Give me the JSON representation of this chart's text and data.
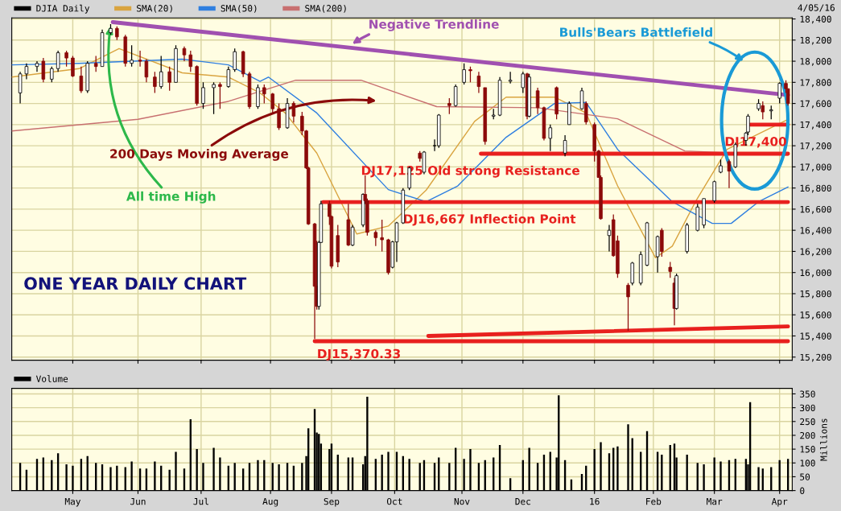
{
  "chart_data": [
    {
      "type": "candlestick",
      "legend": "top left",
      "grid": true,
      "tick_labels": "y",
      "xlim": [
        "2015-04-02",
        "2016-04-07"
      ],
      "xticks": [
        {
          "value": "2015-05-01",
          "label": null
        },
        {
          "value": "2015-06-01",
          "label": null
        },
        {
          "value": "2015-07-01",
          "label": null
        },
        {
          "value": "2015-08-03",
          "label": null
        },
        {
          "value": "2015-09-01",
          "label": null
        },
        {
          "value": "2015-10-01",
          "label": null
        },
        {
          "value": "2015-11-02",
          "label": null
        },
        {
          "value": "2015-12-01",
          "label": null
        },
        {
          "value": "2016-01-04",
          "label": null
        },
        {
          "value": "2016-02-01",
          "label": null
        },
        {
          "value": "2016-03-01",
          "label": null
        },
        {
          "value": "2016-04-01",
          "label": null
        }
      ],
      "ylim": [
        15170,
        18410
      ],
      "yticks": [
        {
          "value": 15200,
          "label": "15,200"
        },
        {
          "value": 15400,
          "label": "15,400"
        },
        {
          "value": 15600,
          "label": "15,600"
        },
        {
          "value": 15800,
          "label": "15,800"
        },
        {
          "value": 16000,
          "label": "16,000"
        },
        {
          "value": 16200,
          "label": "16,200"
        },
        {
          "value": 16400,
          "label": "16,400"
        },
        {
          "value": 16600,
          "label": "16,600"
        },
        {
          "value": 16800,
          "label": "16,800"
        },
        {
          "value": 17000,
          "label": "17,000"
        },
        {
          "value": 17200,
          "label": "17,200"
        },
        {
          "value": 17400,
          "label": "17,400"
        },
        {
          "value": 17600,
          "label": "17,600"
        },
        {
          "value": 17800,
          "label": "17,800"
        },
        {
          "value": 18000,
          "label": "18,000"
        },
        {
          "value": 18200,
          "label": "18,200"
        },
        {
          "value": 18400,
          "label": "18,400"
        }
      ],
      "series": [
        {
          "name": "DJIA Daily",
          "color": "#000000",
          "colors": [
            "#ffffff",
            "#ffffff",
            "#ffffff",
            "#8b0a0a",
            "#ffffff",
            "#ffffff",
            "#8b0a0a",
            "#8b0a0a",
            "#8b0a0a",
            "#ffffff",
            "#8b0a0a",
            "#ffffff",
            "#ffffff",
            "#8b0a0a",
            "#8b0a0a",
            "#ffffff",
            "#8b0a0a",
            "#8b0a0a",
            "#8b0a0a",
            "#ffffff",
            "#8b0a0a",
            "#ffffff",
            "#8b0a0a",
            "#8b0a0a",
            "#8b0a0a",
            "#ffffff",
            "#ffffff",
            "#8b0a0a",
            "#ffffff",
            "#ffffff",
            "#8b0a0a",
            "#8b0a0a",
            "#ffffff",
            "#8b0a0a",
            "#8b0a0a",
            "#8b0a0a",
            "#ffffff",
            "#8b0a0a",
            "#8b0a0a",
            "#8b0a0a",
            "#8b0a0a",
            "#8b0a0a",
            "#8b0a0a",
            "#ffffff",
            "#ffffff",
            "#8b0a0a",
            "#8b0a0a",
            "#8b0a0a",
            "#8b0a0a",
            "#ffffff",
            "#ffffff",
            "#8b0a0a",
            "#8b0a0a",
            "#8b0a0a",
            "#8b0a0a",
            "#8b0a0a",
            "#ffffff",
            "#ffffff",
            "#ffffff",
            "#ffffff",
            "#8b0a0a",
            "#ffffff",
            "#ffffff",
            "#ffffff",
            "#8b0a0a",
            "#ffffff",
            "#ffffff",
            "#8b0a0a",
            "#8b0a0a",
            "#8b0a0a",
            "#ffffff",
            "#ffffff",
            "#ffffff",
            "#ffffff",
            "#8b0a0a",
            "#ffffff",
            "#8b0a0a",
            "#8b0a0a",
            "#ffffff",
            "#8b0a0a",
            "#ffffff",
            "#ffffff",
            "#ffffff",
            "#8b0a0a",
            "#8b0a0a",
            "#8b0a0a",
            "#8b0a0a",
            "#ffffff",
            "#8b0a0a",
            "#8b0a0a",
            "#8b0a0a",
            "#ffffff",
            "#ffffff",
            "#ffffff",
            "#ffffff",
            "#8b0a0a",
            "#8b0a0a",
            "#8b0a0a",
            "#ffffff",
            "#ffffff",
            "#ffffff",
            "#ffffff",
            "#ffffff",
            "#ffffff",
            "#8b0a0a",
            "#ffffff",
            "#ffffff",
            "#ffffff",
            "#ffffff",
            "#8b0a0a",
            "#ffffff",
            "#ffffff",
            "#8b0a0a",
            "#8b0a0a"
          ],
          "x": [
            "2015-04-06",
            "2015-04-09",
            "2015-04-14",
            "2015-04-17",
            "2015-04-21",
            "2015-04-24",
            "2015-04-28",
            "2015-05-01",
            "2015-05-05",
            "2015-05-08",
            "2015-05-12",
            "2015-05-15",
            "2015-05-19",
            "2015-05-22",
            "2015-05-26",
            "2015-05-29",
            "2015-06-02",
            "2015-06-05",
            "2015-06-09",
            "2015-06-12",
            "2015-06-16",
            "2015-06-19",
            "2015-06-23",
            "2015-06-26",
            "2015-06-29",
            "2015-07-02",
            "2015-07-07",
            "2015-07-10",
            "2015-07-14",
            "2015-07-17",
            "2015-07-21",
            "2015-07-24",
            "2015-07-28",
            "2015-07-31",
            "2015-08-04",
            "2015-08-07",
            "2015-08-11",
            "2015-08-14",
            "2015-08-18",
            "2015-08-20",
            "2015-08-21",
            "2015-08-24",
            "2015-08-25",
            "2015-08-26",
            "2015-08-27",
            "2015-08-31",
            "2015-09-01",
            "2015-09-04",
            "2015-09-09",
            "2015-09-11",
            "2015-09-16",
            "2015-09-17",
            "2015-09-18",
            "2015-09-22",
            "2015-09-25",
            "2015-09-28",
            "2015-09-30",
            "2015-10-02",
            "2015-10-05",
            "2015-10-08",
            "2015-10-13",
            "2015-10-15",
            "2015-10-20",
            "2015-10-22",
            "2015-10-27",
            "2015-10-30",
            "2015-11-03",
            "2015-11-06",
            "2015-11-10",
            "2015-11-13",
            "2015-11-17",
            "2015-11-20",
            "2015-11-25",
            "2015-12-01",
            "2015-12-03",
            "2015-12-04",
            "2015-12-08",
            "2015-12-11",
            "2015-12-14",
            "2015-12-17",
            "2015-12-21",
            "2015-12-23",
            "2015-12-29",
            "2015-12-31",
            "2016-01-04",
            "2016-01-06",
            "2016-01-07",
            "2016-01-11",
            "2016-01-13",
            "2016-01-15",
            "2016-01-20",
            "2016-01-22",
            "2016-01-26",
            "2016-01-29",
            "2016-02-03",
            "2016-02-05",
            "2016-02-09",
            "2016-02-11",
            "2016-02-12",
            "2016-02-17",
            "2016-02-22",
            "2016-02-25",
            "2016-03-01",
            "2016-03-04",
            "2016-03-08",
            "2016-03-11",
            "2016-03-16",
            "2016-03-17",
            "2016-03-22",
            "2016-03-24",
            "2016-03-28",
            "2016-04-01",
            "2016-04-04",
            "2016-04-05"
          ],
          "ohlc": [
            [
              17700,
              17900,
              17600,
              17880
            ],
            [
              17880,
              17980,
              17830,
              17950
            ],
            [
              17950,
              18000,
              17900,
              17980
            ],
            [
              18000,
              18030,
              17800,
              17830
            ],
            [
              17830,
              17950,
              17800,
              17930
            ],
            [
              17930,
              18100,
              17900,
              18080
            ],
            [
              18080,
              18100,
              17950,
              18030
            ],
            [
              18030,
              18050,
              17850,
              17860
            ],
            [
              17860,
              17950,
              17700,
              17720
            ],
            [
              17720,
              18000,
              17700,
              17980
            ],
            [
              17980,
              18050,
              17900,
              17950
            ],
            [
              17950,
              18300,
              17950,
              18270
            ],
            [
              18270,
              18351,
              18250,
              18310
            ],
            [
              18310,
              18330,
              18200,
              18230
            ],
            [
              18230,
              18250,
              17950,
              17980
            ],
            [
              17980,
              18150,
              17950,
              18010
            ],
            [
              18010,
              18100,
              17950,
              18000
            ],
            [
              18000,
              18020,
              17800,
              17850
            ],
            [
              17850,
              17900,
              17700,
              17760
            ],
            [
              17760,
              18050,
              17740,
              17900
            ],
            [
              17900,
              17950,
              17720,
              17800
            ],
            [
              17800,
              18150,
              17800,
              18120
            ],
            [
              18120,
              18140,
              18000,
              18060
            ],
            [
              18060,
              18100,
              17900,
              17950
            ],
            [
              17950,
              17960,
              17580,
              17600
            ],
            [
              17600,
              17800,
              17550,
              17750
            ],
            [
              17750,
              17800,
              17500,
              17780
            ],
            [
              17780,
              17800,
              17550,
              17760
            ],
            [
              17760,
              17950,
              17750,
              17920
            ],
            [
              17920,
              18120,
              17900,
              18090
            ],
            [
              18090,
              18100,
              17850,
              17880
            ],
            [
              17880,
              17900,
              17550,
              17570
            ],
            [
              17570,
              17780,
              17550,
              17750
            ],
            [
              17750,
              17780,
              17600,
              17690
            ],
            [
              17690,
              17700,
              17500,
              17550
            ],
            [
              17550,
              17600,
              17350,
              17370
            ],
            [
              17370,
              17650,
              17360,
              17600
            ],
            [
              17600,
              17620,
              17420,
              17480
            ],
            [
              17480,
              17520,
              17300,
              17340
            ],
            [
              17340,
              17350,
              16980,
              16990
            ],
            [
              16990,
              17000,
              16450,
              16460
            ],
            [
              16460,
              16470,
              15370.33,
              15870
            ],
            [
              15870,
              16300,
              15650,
              15680
            ],
            [
              15680,
              16300,
              15650,
              16285
            ],
            [
              16285,
              16680,
              16280,
              16650
            ],
            [
              16650,
              16680,
              16450,
              16530
            ],
            [
              16530,
              16540,
              16040,
              16060
            ],
            [
              16350,
              16450,
              16050,
              16100
            ],
            [
              16500,
              16650,
              16250,
              16260
            ],
            [
              16260,
              16450,
              16250,
              16430
            ],
            [
              16450,
              16750,
              16430,
              16740
            ],
            [
              16740,
              16920,
              16650,
              16680
            ],
            [
              16680,
              16700,
              16350,
              16380
            ],
            [
              16380,
              16400,
              16250,
              16330
            ],
            [
              16330,
              16500,
              16200,
              16310
            ],
            [
              16310,
              16320,
              15980,
              16000
            ],
            [
              16050,
              16300,
              16040,
              16290
            ],
            [
              16290,
              16480,
              16100,
              16470
            ],
            [
              16470,
              16800,
              16460,
              16780
            ],
            [
              16800,
              17000,
              16780,
              16990
            ],
            [
              17130,
              17150,
              17050,
              17080
            ],
            [
              16950,
              17150,
              16930,
              17140
            ],
            [
              17200,
              17260,
              17150,
              17200
            ],
            [
              17200,
              17500,
              17180,
              17490
            ],
            [
              17600,
              17650,
              17500,
              17580
            ],
            [
              17580,
              17780,
              17570,
              17760
            ],
            [
              17800,
              17980,
              17780,
              17920
            ],
            [
              17920,
              17950,
              17800,
              17910
            ],
            [
              17860,
              17900,
              17700,
              17760
            ],
            [
              17750,
              17750,
              17210,
              17240
            ],
            [
              17480,
              17550,
              17450,
              17490
            ],
            [
              17490,
              17850,
              17480,
              17820
            ],
            [
              17810,
              17900,
              17790,
              17820
            ],
            [
              17750,
              17900,
              17700,
              17880
            ],
            [
              17880,
              17890,
              17450,
              17480
            ],
            [
              17480,
              17880,
              17470,
              17850
            ],
            [
              17720,
              17750,
              17500,
              17560
            ],
            [
              17560,
              17570,
              17250,
              17270
            ],
            [
              17270,
              17400,
              17150,
              17370
            ],
            [
              17750,
              17760,
              17450,
              17500
            ],
            [
              17130,
              17300,
              17100,
              17250
            ],
            [
              17400,
              17620,
              17400,
              17600
            ],
            [
              17550,
              17750,
              17540,
              17720
            ],
            [
              17600,
              17620,
              17400,
              17425
            ],
            [
              17400,
              17420,
              17050,
              17150
            ],
            [
              17150,
              17160,
              16900,
              16900
            ],
            [
              16900,
              16920,
              16500,
              16510
            ],
            [
              16350,
              16450,
              16200,
              16400
            ],
            [
              16500,
              16550,
              16150,
              16160
            ],
            [
              16300,
              16350,
              15950,
              15990
            ],
            [
              15880,
              15900,
              15450,
              15770
            ],
            [
              15900,
              16100,
              15880,
              16090
            ],
            [
              15900,
              16200,
              15880,
              16170
            ],
            [
              16070,
              16480,
              16060,
              16470
            ],
            [
              16150,
              16350,
              16000,
              16340
            ],
            [
              16400,
              16420,
              16150,
              16200
            ],
            [
              16050,
              16100,
              15950,
              16010
            ],
            [
              15900,
              15950,
              15500,
              15660
            ],
            [
              15660,
              15990,
              15650,
              15970
            ],
            [
              16200,
              16470,
              16180,
              16450
            ],
            [
              16400,
              16650,
              16390,
              16620
            ],
            [
              16450,
              16700,
              16420,
              16700
            ],
            [
              16680,
              16870,
              16660,
              16860
            ],
            [
              16950,
              17070,
              16940,
              17010
            ],
            [
              17050,
              17070,
              16800,
              16960
            ],
            [
              17000,
              17230,
              16990,
              17210
            ],
            [
              17250,
              17330,
              17200,
              17320
            ],
            [
              17330,
              17500,
              17300,
              17480
            ],
            [
              17550,
              17640,
              17530,
              17600
            ],
            [
              17580,
              17620,
              17450,
              17520
            ],
            [
              17530,
              17580,
              17450,
              17540
            ],
            [
              17650,
              17800,
              17600,
              17790
            ],
            [
              17790,
              17820,
              17700,
              17740
            ],
            [
              17740,
              17740,
              17580,
              17600
            ]
          ],
          "type": "candlestick"
        },
        {
          "name": "SMA(20)",
          "type": "line",
          "color": "#d9a440",
          "x": [
            "2015-04-02",
            "2015-05-04",
            "2015-05-23",
            "2015-06-22",
            "2015-07-14",
            "2015-07-29",
            "2015-08-10",
            "2015-08-25",
            "2015-09-13",
            "2015-09-28",
            "2015-10-16",
            "2015-11-08",
            "2015-11-23",
            "2015-12-16",
            "2015-12-31",
            "2016-01-15",
            "2016-02-02",
            "2016-02-10",
            "2016-02-21",
            "2016-03-07",
            "2016-04-05"
          ],
          "values": [
            17850,
            17930,
            18120,
            17890,
            17850,
            17700,
            17510,
            17130,
            16365,
            16440,
            16780,
            17430,
            17660,
            17660,
            17510,
            16820,
            16140,
            16250,
            16670,
            17165,
            17450
          ]
        },
        {
          "name": "SMA(50)",
          "type": "line",
          "color": "#2f7fe0",
          "x": [
            "2015-04-02",
            "2015-05-04",
            "2015-06-22",
            "2015-07-14",
            "2015-07-29",
            "2015-08-02",
            "2015-08-25",
            "2015-09-28",
            "2015-10-16",
            "2015-10-31",
            "2015-11-23",
            "2015-12-16",
            "2015-12-31",
            "2016-01-15",
            "2016-02-10",
            "2016-02-29",
            "2016-03-09",
            "2016-03-22",
            "2016-04-05"
          ],
          "values": [
            17965,
            17980,
            18020,
            17965,
            17810,
            17850,
            17510,
            16785,
            16670,
            16820,
            17280,
            17600,
            17610,
            17165,
            16670,
            16465,
            16465,
            16670,
            16810
          ]
        },
        {
          "name": "SMA(200)",
          "type": "line",
          "color": "#c87070",
          "x": [
            "2015-04-02",
            "2015-06-01",
            "2015-07-14",
            "2015-08-15",
            "2015-09-15",
            "2015-10-21",
            "2015-12-08",
            "2016-01-15",
            "2016-02-16",
            "2016-04-05"
          ],
          "values": [
            17340,
            17450,
            17620,
            17820,
            17820,
            17570,
            17560,
            17455,
            17150,
            17110
          ]
        },
        {
          "type": "line",
          "color": "#a050b0",
          "x": [
            "2015-05-20",
            "2016-04-05"
          ],
          "values": [
            18370,
            17680
          ]
        },
        {
          "type": "line",
          "color": "#e8201e",
          "x": [
            "2015-11-11",
            "2016-04-05"
          ],
          "values": [
            17125,
            17125
          ]
        },
        {
          "type": "line",
          "color": "#e8201e",
          "x": [
            "2015-08-28",
            "2016-04-05"
          ],
          "values": [
            16667,
            16667
          ]
        },
        {
          "type": "line",
          "color": "#e8201e",
          "x": [
            "2016-03-18",
            "2016-04-05"
          ],
          "values": [
            17400,
            17400
          ]
        },
        {
          "type": "line",
          "color": "#e8201e",
          "x": [
            "2015-08-24",
            "2016-04-05"
          ],
          "values": [
            15350,
            15350
          ]
        },
        {
          "type": "line",
          "color": "#e8201e",
          "x": [
            "2015-10-17",
            "2016-04-05"
          ],
          "values": [
            15400,
            15490
          ]
        }
      ],
      "annotations": [
        {
          "text": "All time High",
          "x": "2015-05-19",
          "y": 18351
        },
        {
          "text": "Negative Trendline",
          "x": "2015-09-10",
          "y": 18150
        },
        "200 Days Moving Average",
        "Bulls'Bears Battlefield",
        {
          "text": "DJ17,125 Old strong Resistance",
          "x": "2015-11-22",
          "y": 17125
        },
        {
          "text": "DJ16,667 Inflection Point",
          "x": "2015-12-01",
          "y": 16667
        },
        {
          "text": "DJ17,400",
          "x": "2016-03-28",
          "y": 17400
        },
        {
          "text": "DJ15,370.33",
          "x": "2015-08-24",
          "y": 15370.33
        },
        "ONE YEAR DAILY CHART",
        "4/05/16"
      ]
    },
    {
      "type": "bar",
      "legend": "top left",
      "grid": true,
      "ylabel": "Millions",
      "xlim": [
        "2015-04-02",
        "2016-04-07"
      ],
      "xticks": [
        {
          "value": "2015-05-01",
          "label": "May"
        },
        {
          "value": "2015-06-01",
          "label": "Jun"
        },
        {
          "value": "2015-07-01",
          "label": "Jul"
        },
        {
          "value": "2015-08-03",
          "label": "Aug"
        },
        {
          "value": "2015-09-01",
          "label": "Sep"
        },
        {
          "value": "2015-10-01",
          "label": "Oct"
        },
        {
          "value": "2015-11-02",
          "label": "Nov"
        },
        {
          "value": "2015-12-01",
          "label": "Dec"
        },
        {
          "value": "2016-01-04",
          "label": "16"
        },
        {
          "value": "2016-02-01",
          "label": "Feb"
        },
        {
          "value": "2016-03-01",
          "label": "Mar"
        },
        {
          "value": "2016-04-01",
          "label": "Apr"
        }
      ],
      "ylim": [
        0,
        370
      ],
      "yticks": [
        0,
        50,
        100,
        150,
        200,
        250,
        300,
        350
      ],
      "series": [
        {
          "name": "Volume",
          "color": "#000000",
          "x": [
            "2015-04-06",
            "2015-04-09",
            "2015-04-14",
            "2015-04-17",
            "2015-04-21",
            "2015-04-24",
            "2015-04-28",
            "2015-05-01",
            "2015-05-05",
            "2015-05-08",
            "2015-05-12",
            "2015-05-15",
            "2015-05-19",
            "2015-05-22",
            "2015-05-26",
            "2015-05-29",
            "2015-06-02",
            "2015-06-05",
            "2015-06-09",
            "2015-06-12",
            "2015-06-16",
            "2015-06-19",
            "2015-06-23",
            "2015-06-26",
            "2015-06-29",
            "2015-07-02",
            "2015-07-07",
            "2015-07-10",
            "2015-07-14",
            "2015-07-17",
            "2015-07-21",
            "2015-07-24",
            "2015-07-28",
            "2015-07-31",
            "2015-08-04",
            "2015-08-07",
            "2015-08-11",
            "2015-08-14",
            "2015-08-18",
            "2015-08-20",
            "2015-08-21",
            "2015-08-24",
            "2015-08-25",
            "2015-08-26",
            "2015-08-27",
            "2015-08-31",
            "2015-09-01",
            "2015-09-04",
            "2015-09-09",
            "2015-09-11",
            "2015-09-16",
            "2015-09-17",
            "2015-09-18",
            "2015-09-22",
            "2015-09-25",
            "2015-09-28",
            "2015-10-02",
            "2015-10-05",
            "2015-10-08",
            "2015-10-13",
            "2015-10-15",
            "2015-10-20",
            "2015-10-22",
            "2015-10-27",
            "2015-10-30",
            "2015-11-03",
            "2015-11-06",
            "2015-11-10",
            "2015-11-13",
            "2015-11-17",
            "2015-11-20",
            "2015-11-25",
            "2015-12-01",
            "2015-12-04",
            "2015-12-08",
            "2015-12-11",
            "2015-12-14",
            "2015-12-17",
            "2015-12-18",
            "2015-12-21",
            "2015-12-24",
            "2015-12-29",
            "2015-12-31",
            "2016-01-04",
            "2016-01-07",
            "2016-01-11",
            "2016-01-13",
            "2016-01-15",
            "2016-01-20",
            "2016-01-22",
            "2016-01-26",
            "2016-01-29",
            "2016-02-03",
            "2016-02-05",
            "2016-02-09",
            "2016-02-11",
            "2016-02-12",
            "2016-02-17",
            "2016-02-22",
            "2016-02-25",
            "2016-03-01",
            "2016-03-04",
            "2016-03-08",
            "2016-03-11",
            "2016-03-16",
            "2016-03-17",
            "2016-03-18",
            "2016-03-22",
            "2016-03-24",
            "2016-03-28",
            "2016-04-01",
            "2016-04-05"
          ],
          "values": [
            100,
            75,
            115,
            120,
            110,
            135,
            95,
            90,
            115,
            125,
            100,
            95,
            85,
            90,
            85,
            105,
            80,
            80,
            105,
            90,
            75,
            140,
            80,
            258,
            150,
            100,
            155,
            120,
            90,
            100,
            80,
            100,
            110,
            110,
            100,
            95,
            100,
            90,
            100,
            125,
            225,
            295,
            210,
            205,
            170,
            150,
            170,
            130,
            120,
            120,
            95,
            125,
            340,
            115,
            130,
            140,
            140,
            125,
            115,
            100,
            110,
            100,
            120,
            100,
            155,
            115,
            150,
            100,
            110,
            120,
            165,
            45,
            110,
            155,
            100,
            130,
            140,
            120,
            345,
            110,
            40,
            60,
            90,
            150,
            175,
            135,
            155,
            160,
            240,
            190,
            140,
            215,
            140,
            130,
            165,
            170,
            120,
            130,
            100,
            95,
            120,
            105,
            110,
            115,
            115,
            95,
            320,
            85,
            80,
            85,
            110,
            115
          ]
        }
      ]
    }
  ]
}
